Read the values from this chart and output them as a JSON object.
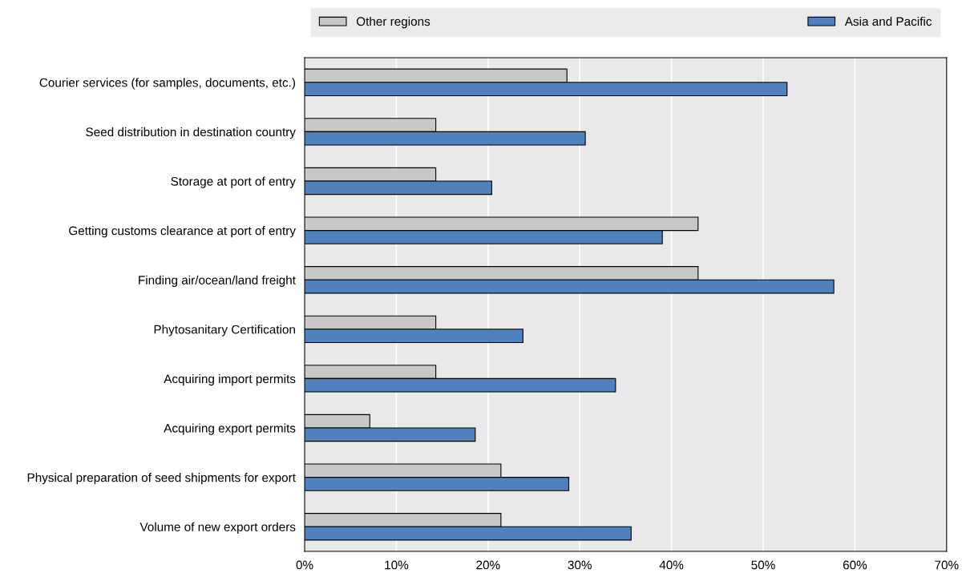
{
  "chart_data": {
    "type": "bar",
    "orientation": "horizontal",
    "categories": [
      "Courier services (for samples, documents, etc.)",
      "Seed distribution in destination country",
      "Storage at port of entry",
      "Getting customs clearance at port of entry",
      "Finding air/ocean/land freight",
      "Phytosanitary Certification",
      "Acquiring import permits",
      "Acquiring export permits",
      "Physical preparation of seed shipments for export",
      "Volume of new export orders"
    ],
    "series": [
      {
        "name": "Other regions",
        "color": "#c8c8c8",
        "values": [
          28.6,
          14.3,
          14.3,
          42.9,
          42.9,
          14.3,
          14.3,
          7.1,
          21.4,
          21.4
        ]
      },
      {
        "name": "Asia and Pacific",
        "color": "#4e81bd",
        "values": [
          52.6,
          30.6,
          20.4,
          39.0,
          57.7,
          23.8,
          33.9,
          18.6,
          28.8,
          35.6
        ]
      }
    ],
    "xlim": [
      0,
      70
    ],
    "xticks": [
      {
        "value": 0,
        "label": "0%"
      },
      {
        "value": 10,
        "label": "10%"
      },
      {
        "value": 20,
        "label": "20%"
      },
      {
        "value": 30,
        "label": "30%"
      },
      {
        "value": 40,
        "label": "40%"
      },
      {
        "value": 50,
        "label": "50%"
      },
      {
        "value": 60,
        "label": "60%"
      },
      {
        "value": 70,
        "label": "70%"
      }
    ],
    "grid": "x",
    "legend": "top"
  }
}
